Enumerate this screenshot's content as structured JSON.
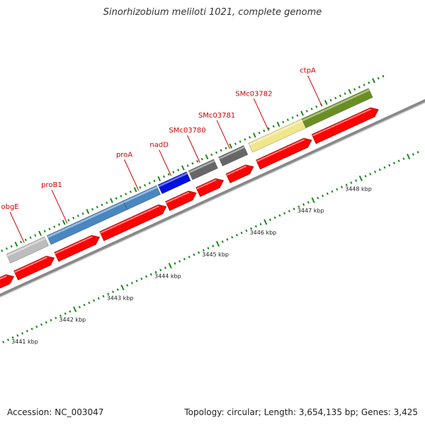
{
  "title": "Sinorhizobium meliloti 1021, complete genome",
  "footer": {
    "accession": "Accession: NC_003047",
    "summary": "Topology: circular; Length: 3,654,135 bp; Genes: 3,425"
  },
  "colors": {
    "cds": "#ff0000",
    "label": "#d40000",
    "tick": "#1a8a1a",
    "backbone": "#888888"
  },
  "ruler": [
    {
      "kbp": 3441,
      "label": "3441 kbp"
    },
    {
      "kbp": 3442,
      "label": "3442 kbp"
    },
    {
      "kbp": 3443,
      "label": "3443 kbp"
    },
    {
      "kbp": 3444,
      "label": "3444 kbp"
    },
    {
      "kbp": 3445,
      "label": "3445 kbp"
    },
    {
      "kbp": 3446,
      "label": "3446 kbp"
    },
    {
      "kbp": 3447,
      "label": "3447 kbp"
    },
    {
      "kbp": 3448,
      "label": "3448 kbp"
    }
  ],
  "genes": [
    {
      "name": "obgE",
      "start_kbp": 3441.3,
      "end_kbp": 3442.1,
      "color": "#bdbdbd"
    },
    {
      "name": "proB1",
      "start_kbp": 3442.15,
      "end_kbp": 3443.75,
      "color": "#4a86c0"
    },
    {
      "name": "proA",
      "start_kbp": 3443.75,
      "end_kbp": 3444.45,
      "color": "#4a86c0"
    },
    {
      "name": "nadD",
      "start_kbp": 3444.48,
      "end_kbp": 3445.08,
      "color": "#0010e0"
    },
    {
      "name": "SMc03780",
      "start_kbp": 3445.12,
      "end_kbp": 3445.65,
      "color": "#666666"
    },
    {
      "name": "SMc03781",
      "start_kbp": 3445.75,
      "end_kbp": 3446.28,
      "color": "#666666"
    },
    {
      "name": "SMc03782",
      "start_kbp": 3446.38,
      "end_kbp": 3447.5,
      "color": "#f0e68c"
    },
    {
      "name": "ctpA",
      "start_kbp": 3447.5,
      "end_kbp": 3448.9,
      "color": "#6b8e23"
    }
  ],
  "cds": [
    {
      "start_kbp": 3440.5,
      "end_kbp": 3441.25
    },
    {
      "start_kbp": 3441.3,
      "end_kbp": 3442.1
    },
    {
      "start_kbp": 3442.15,
      "end_kbp": 3443.05
    },
    {
      "start_kbp": 3443.1,
      "end_kbp": 3444.45
    },
    {
      "start_kbp": 3444.48,
      "end_kbp": 3445.08
    },
    {
      "start_kbp": 3445.12,
      "end_kbp": 3445.65
    },
    {
      "start_kbp": 3445.75,
      "end_kbp": 3446.28
    },
    {
      "start_kbp": 3446.38,
      "end_kbp": 3447.5
    },
    {
      "start_kbp": 3447.55,
      "end_kbp": 3448.9
    }
  ]
}
